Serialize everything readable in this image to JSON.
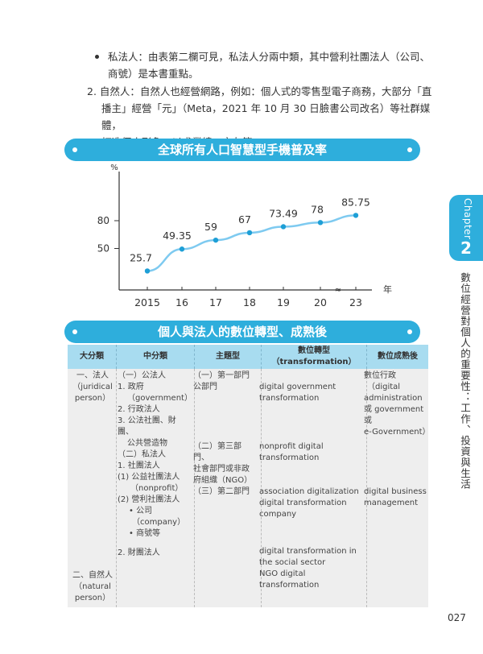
{
  "text": {
    "bullet_line1": "私法人：由表第二欄可見，私法人分兩中類，其中營利社團法人（公司、",
    "bullet_line2": "商號）是本書重點。",
    "item2_line1": "2. 自然人：自然人也經營網路，例如：個人式的零售型電子商務，大部分「直",
    "item2_line2": "播主」經營「元」（Meta，2021 年 10 月 30 日臉書公司改名）等社群媒體，",
    "item2_line3": "打造個人形象，以求業績、交友等。"
  },
  "banner1": {
    "title": "全球所有人口智慧型手機普及率"
  },
  "banner2": {
    "title": "個人與法人的數位轉型、成熟後"
  },
  "side": {
    "chapter_label": "Chapter",
    "chapter_num": "2",
    "vertical_title": "數位經營對個人的重要性：工作、投資與生活"
  },
  "chart_data": {
    "type": "line",
    "x": [
      "2015",
      "16",
      "17",
      "18",
      "19",
      "20",
      "23"
    ],
    "values": [
      25.7,
      49.35,
      59,
      67,
      73.49,
      78,
      85.75
    ],
    "data_labels": [
      "25.7",
      "49.35",
      "59",
      "67",
      "73.49",
      "78",
      "85.75"
    ],
    "ylabel": "%",
    "xlabel": "年",
    "yticks": [
      "50",
      "80"
    ],
    "axis_break_symbol": "≈",
    "grid": false,
    "line_color": "#7ecaf0",
    "point_color": "#1e9fd6"
  },
  "table": {
    "headers": [
      "大分類",
      "中分類",
      "主題型",
      "數位轉型（transformation）",
      "數位成熟後"
    ],
    "col1": [
      "一、法人",
      "（juridical",
      "person）"
    ],
    "col1b": [
      "二、自然人",
      "（natural",
      "person）"
    ],
    "col2": [
      "（一）公法人",
      "1. 政府",
      "（government）",
      "2. 行政法人",
      "3. 公法社團、財團、",
      "公共營造物",
      "（二）私法人",
      "1. 社團法人",
      "(1) 公益社團法人",
      "（nonprofit）",
      "(2) 營利社團法人",
      "• 公司",
      "（company）",
      "• 商號等"
    ],
    "col2b": [
      "2. 財團法人"
    ],
    "col3a": [
      "（一）第一部門",
      "公部門"
    ],
    "col3b": [
      "（二）第三部門、",
      "社會部門或非政",
      "府組織（NGO）"
    ],
    "col3c": [
      "（三）第二部門"
    ],
    "col4a": [
      "digital government",
      "transformation"
    ],
    "col4b": [
      "nonprofit digital",
      "transformation"
    ],
    "col4c": [
      "association digitalization",
      "digital transformation",
      "company"
    ],
    "col4d": [
      "digital transformation in",
      "the social sector",
      "NGO digital transformation"
    ],
    "col5a": [
      "數位行政",
      "（digital",
      "administration",
      "或 government",
      "或",
      "e-Government）"
    ],
    "col5b": [
      "digital business",
      "management"
    ]
  },
  "page_number": "027"
}
